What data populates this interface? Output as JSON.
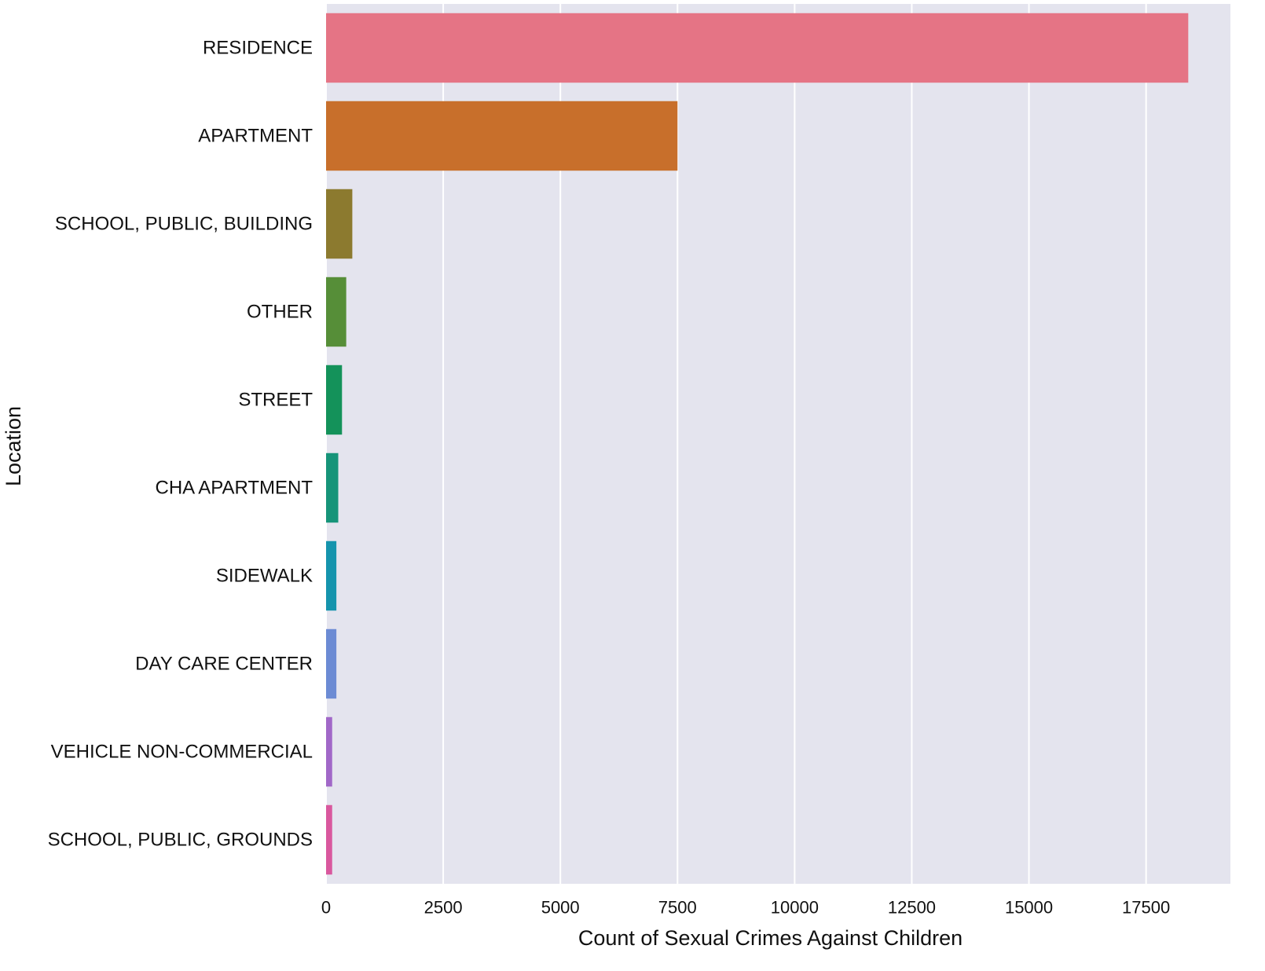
{
  "chart_data": {
    "type": "bar",
    "orientation": "horizontal",
    "categories": [
      "RESIDENCE",
      "APARTMENT",
      "SCHOOL, PUBLIC, BUILDING",
      "OTHER",
      "STREET",
      "CHA APARTMENT",
      "SIDEWALK",
      "DAY CARE CENTER",
      "VEHICLE NON-COMMERCIAL",
      "SCHOOL, PUBLIC, GROUNDS"
    ],
    "values": [
      18400,
      7500,
      560,
      430,
      340,
      260,
      220,
      220,
      130,
      130
    ],
    "colors": [
      "#e57485",
      "#c86f2b",
      "#8c7a2f",
      "#568e38",
      "#14925a",
      "#169479",
      "#1594ad",
      "#6c8bd4",
      "#a168c8",
      "#d9589e"
    ],
    "title": "",
    "xlabel": "Count of Sexual Crimes Against Children",
    "ylabel": "Location",
    "xlim": [
      0,
      19300
    ],
    "xticks": [
      0,
      2500,
      5000,
      7500,
      10000,
      12500,
      15000,
      17500
    ],
    "xtick_labels": [
      "0",
      "2500",
      "5000",
      "7500",
      "10000",
      "12500",
      "15000",
      "17500"
    ],
    "grid": true,
    "background": "#e4e4ee",
    "grid_color": "#ffffff"
  }
}
